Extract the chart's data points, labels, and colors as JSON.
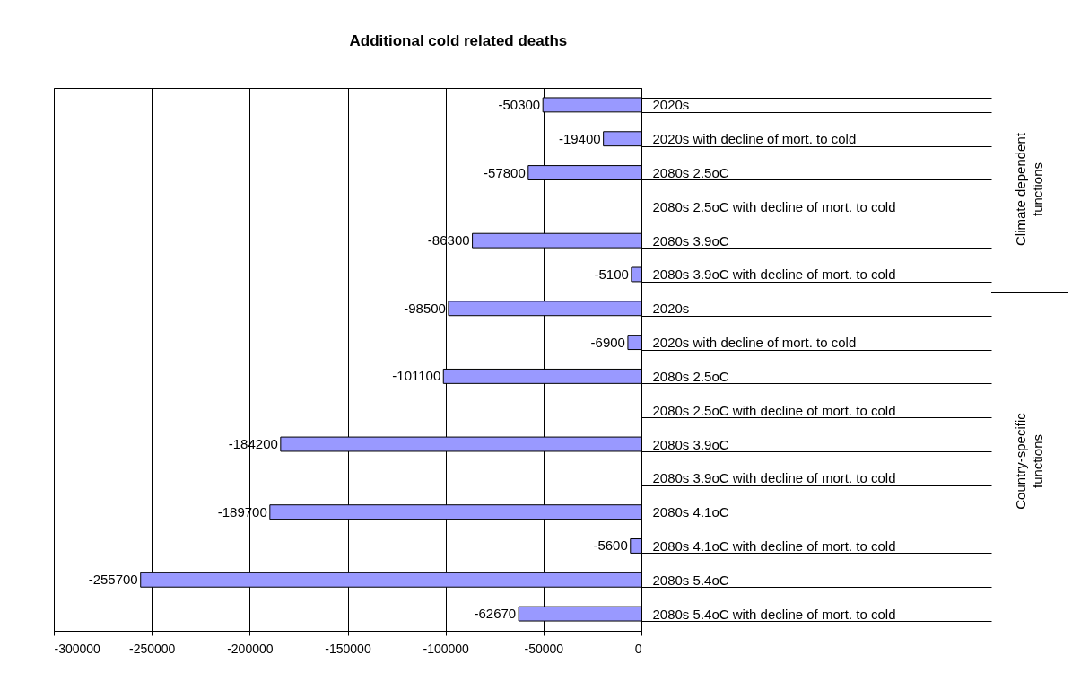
{
  "chart_data": {
    "type": "bar",
    "orientation": "horizontal",
    "title": "Additional cold related deaths",
    "categories": [
      "2020s",
      "2020s with decline of mort. to cold",
      "2080s 2.5oC",
      "2080s 2.5oC with decline of mort. to cold",
      "2080s 3.9oC",
      "2080s 3.9oC with decline of mort. to cold",
      "2020s",
      "2020s with decline of mort. to cold",
      "2080s 2.5oC",
      "2080s 2.5oC with decline of mort. to cold",
      "2080s 3.9oC",
      "2080s 3.9oC with decline of mort. to cold",
      "2080s 4.1oC",
      "2080s 4.1oC with decline of mort. to cold",
      "2080s 5.4oC",
      "2080s 5.4oC with decline of mort. to cold"
    ],
    "values": [
      -50300,
      -19400,
      -57800,
      null,
      -86300,
      -5100,
      -98500,
      -6900,
      -101100,
      null,
      -184200,
      null,
      -189700,
      -5600,
      -255700,
      -62670
    ],
    "color": "#9999ff",
    "data_labels": true,
    "xlim": [
      -300000,
      0
    ],
    "xticks": [
      -300000,
      -250000,
      -200000,
      -150000,
      -100000,
      -50000,
      0
    ],
    "grid": "x",
    "annotations": [
      "Climate dependent functions",
      "Country-specific functions"
    ]
  }
}
